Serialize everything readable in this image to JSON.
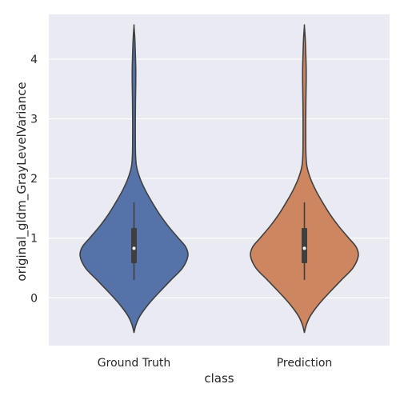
{
  "chart_data": {
    "type": "violin",
    "title": "",
    "xlabel": "class",
    "ylabel": "original_gldm_GrayLevelVariance",
    "categories": [
      "Ground Truth",
      "Prediction"
    ],
    "ylim": [
      -0.8,
      4.75
    ],
    "yticks": [
      0,
      1,
      2,
      3,
      4
    ],
    "grid": true,
    "background": "#eaeaf2",
    "colors": [
      "#5573a8",
      "#cd8660"
    ],
    "violins": [
      {
        "category": "Ground Truth",
        "box": {
          "whisker_low": 0.3,
          "q1": 0.58,
          "median": 0.83,
          "q3": 1.17,
          "whisker_high": 1.6
        },
        "density_profile": [
          {
            "y": -0.58,
            "w": 0.0
          },
          {
            "y": -0.45,
            "w": 0.03
          },
          {
            "y": -0.3,
            "w": 0.09
          },
          {
            "y": -0.1,
            "w": 0.22
          },
          {
            "y": 0.1,
            "w": 0.38
          },
          {
            "y": 0.3,
            "w": 0.55
          },
          {
            "y": 0.5,
            "w": 0.72
          },
          {
            "y": 0.7,
            "w": 0.8
          },
          {
            "y": 0.85,
            "w": 0.77
          },
          {
            "y": 1.0,
            "w": 0.66
          },
          {
            "y": 1.2,
            "w": 0.51
          },
          {
            "y": 1.4,
            "w": 0.38
          },
          {
            "y": 1.6,
            "w": 0.27
          },
          {
            "y": 1.8,
            "w": 0.17
          },
          {
            "y": 2.0,
            "w": 0.09
          },
          {
            "y": 2.2,
            "w": 0.038
          },
          {
            "y": 2.4,
            "w": 0.023
          },
          {
            "y": 2.7,
            "w": 0.02
          },
          {
            "y": 3.0,
            "w": 0.02
          },
          {
            "y": 3.3,
            "w": 0.022
          },
          {
            "y": 3.6,
            "w": 0.026
          },
          {
            "y": 3.85,
            "w": 0.026
          },
          {
            "y": 4.1,
            "w": 0.02
          },
          {
            "y": 4.35,
            "w": 0.012
          },
          {
            "y": 4.55,
            "w": 0.0
          }
        ]
      },
      {
        "category": "Prediction",
        "box": {
          "whisker_low": 0.3,
          "q1": 0.58,
          "median": 0.83,
          "q3": 1.17,
          "whisker_high": 1.6
        },
        "density_profile": [
          {
            "y": -0.58,
            "w": 0.0
          },
          {
            "y": -0.45,
            "w": 0.03
          },
          {
            "y": -0.3,
            "w": 0.09
          },
          {
            "y": -0.1,
            "w": 0.22
          },
          {
            "y": 0.1,
            "w": 0.38
          },
          {
            "y": 0.3,
            "w": 0.55
          },
          {
            "y": 0.5,
            "w": 0.72
          },
          {
            "y": 0.7,
            "w": 0.8
          },
          {
            "y": 0.85,
            "w": 0.77
          },
          {
            "y": 1.0,
            "w": 0.66
          },
          {
            "y": 1.2,
            "w": 0.51
          },
          {
            "y": 1.4,
            "w": 0.38
          },
          {
            "y": 1.6,
            "w": 0.27
          },
          {
            "y": 1.8,
            "w": 0.17
          },
          {
            "y": 2.0,
            "w": 0.09
          },
          {
            "y": 2.2,
            "w": 0.038
          },
          {
            "y": 2.4,
            "w": 0.023
          },
          {
            "y": 2.7,
            "w": 0.02
          },
          {
            "y": 3.0,
            "w": 0.02
          },
          {
            "y": 3.3,
            "w": 0.022
          },
          {
            "y": 3.6,
            "w": 0.026
          },
          {
            "y": 3.85,
            "w": 0.026
          },
          {
            "y": 4.1,
            "w": 0.02
          },
          {
            "y": 4.35,
            "w": 0.012
          },
          {
            "y": 4.55,
            "w": 0.0
          }
        ]
      }
    ]
  }
}
